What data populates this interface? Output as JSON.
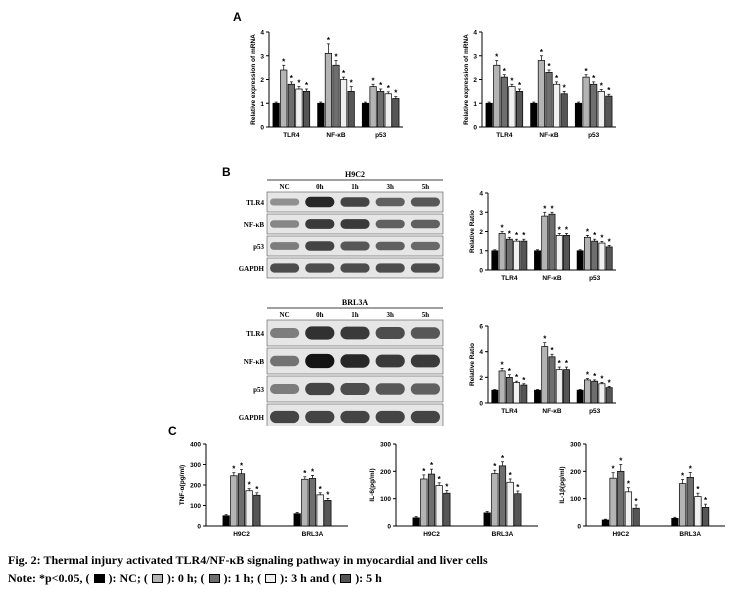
{
  "figure": {
    "panel_a_label": "A",
    "panel_b_label": "B",
    "panel_c_label": "C",
    "caption_title": "Fig. 2: Thermal injury activated TLR4/NF-κB signaling pathway in myocardial and liver cells",
    "note_prefix": "Note:  *p<0.05, (",
    "note_nc": "): NC; (",
    "note_0h": "): 0 h; (",
    "note_1h": "): 1 h; (",
    "note_3h": "): 3 h and (",
    "note_5h": "): 5 h"
  },
  "colors": {
    "NC": "#000000",
    "0h": "#b4b4b4",
    "1h": "#6e6e6e",
    "3h": "#f0f0f0",
    "5h": "#555555"
  },
  "blots": [
    {
      "title": "H9C2",
      "lanes": [
        "NC",
        "0h",
        "1h",
        "3h",
        "5h"
      ],
      "rows": [
        "TLR4",
        "NF-κB",
        "p53",
        "GAPDH"
      ]
    },
    {
      "title": "BRL3A",
      "lanes": [
        "NC",
        "0h",
        "1h",
        "3h",
        "5h"
      ],
      "rows": [
        "TLR4",
        "NF-κB",
        "p53",
        "GAPDH"
      ]
    }
  ],
  "chart_data": [
    {
      "id": "A-left",
      "type": "bar",
      "ylabel": "Relative expression of mRNA",
      "xlabel": "",
      "ylim": [
        0,
        4
      ],
      "yticks": [
        "0",
        "1",
        "2",
        "3",
        "4"
      ],
      "categories": [
        "TLR4",
        "NF-κB",
        "p53"
      ],
      "series": [
        {
          "key": "NC",
          "values": [
            1.0,
            1.0,
            1.0
          ],
          "errors": [
            0.05,
            0.05,
            0.05
          ],
          "sig": [
            "",
            "",
            ""
          ]
        },
        {
          "key": "0h",
          "values": [
            2.4,
            3.1,
            1.7
          ],
          "errors": [
            0.2,
            0.4,
            0.1
          ],
          "sig": [
            "*",
            "*",
            "*"
          ]
        },
        {
          "key": "1h",
          "values": [
            1.8,
            2.6,
            1.5
          ],
          "errors": [
            0.1,
            0.2,
            0.1
          ],
          "sig": [
            "*",
            "*",
            "*"
          ]
        },
        {
          "key": "3h",
          "values": [
            1.6,
            2.0,
            1.4
          ],
          "errors": [
            0.1,
            0.1,
            0.08
          ],
          "sig": [
            "*",
            "*",
            "*"
          ]
        },
        {
          "key": "5h",
          "values": [
            1.5,
            1.5,
            1.2
          ],
          "errors": [
            0.1,
            0.2,
            0.08
          ],
          "sig": [
            "*",
            "*",
            "*"
          ]
        }
      ]
    },
    {
      "id": "A-right",
      "type": "bar",
      "ylabel": "Relative expression of mRNA",
      "xlabel": "",
      "ylim": [
        0,
        4
      ],
      "yticks": [
        "0",
        "1",
        "2",
        "3",
        "4"
      ],
      "categories": [
        "TLR4",
        "NF-κB",
        "p53"
      ],
      "series": [
        {
          "key": "NC",
          "values": [
            1.0,
            1.0,
            1.0
          ],
          "errors": [
            0.05,
            0.05,
            0.05
          ],
          "sig": [
            "",
            "",
            ""
          ]
        },
        {
          "key": "0h",
          "values": [
            2.6,
            2.8,
            2.1
          ],
          "errors": [
            0.2,
            0.2,
            0.1
          ],
          "sig": [
            "*",
            "*",
            "*"
          ]
        },
        {
          "key": "1h",
          "values": [
            2.1,
            2.3,
            1.8
          ],
          "errors": [
            0.1,
            0.1,
            0.1
          ],
          "sig": [
            "*",
            "*",
            "*"
          ]
        },
        {
          "key": "3h",
          "values": [
            1.7,
            1.8,
            1.5
          ],
          "errors": [
            0.1,
            0.1,
            0.08
          ],
          "sig": [
            "*",
            "*",
            "*"
          ]
        },
        {
          "key": "5h",
          "values": [
            1.5,
            1.4,
            1.3
          ],
          "errors": [
            0.1,
            0.1,
            0.08
          ],
          "sig": [
            "*",
            "*",
            "*"
          ]
        }
      ]
    },
    {
      "id": "B-top",
      "type": "bar",
      "ylabel": "Relative Ratio",
      "xlabel": "",
      "ylim": [
        0,
        4
      ],
      "yticks": [
        "0",
        "1",
        "2",
        "3",
        "4"
      ],
      "categories": [
        "TLR4",
        "NF-κB",
        "p53"
      ],
      "series": [
        {
          "key": "NC",
          "values": [
            1.0,
            1.0,
            1.0
          ],
          "errors": [
            0.05,
            0.05,
            0.05
          ],
          "sig": [
            "",
            "",
            ""
          ]
        },
        {
          "key": "0h",
          "values": [
            1.9,
            2.8,
            1.7
          ],
          "errors": [
            0.1,
            0.2,
            0.1
          ],
          "sig": [
            "*",
            "*",
            "*"
          ]
        },
        {
          "key": "1h",
          "values": [
            1.6,
            2.9,
            1.5
          ],
          "errors": [
            0.1,
            0.1,
            0.1
          ],
          "sig": [
            "*",
            "*",
            "*"
          ]
        },
        {
          "key": "3h",
          "values": [
            1.5,
            1.8,
            1.4
          ],
          "errors": [
            0.1,
            0.1,
            0.08
          ],
          "sig": [
            "*",
            "*",
            "*"
          ]
        },
        {
          "key": "5h",
          "values": [
            1.5,
            1.8,
            1.2
          ],
          "errors": [
            0.1,
            0.1,
            0.08
          ],
          "sig": [
            "*",
            "*",
            "*"
          ]
        }
      ]
    },
    {
      "id": "B-bottom",
      "type": "bar",
      "ylabel": "Relative Ratio",
      "xlabel": "",
      "ylim": [
        0,
        6
      ],
      "yticks": [
        "0",
        "2",
        "4",
        "6"
      ],
      "categories": [
        "TLR4",
        "NF-κB",
        "p53"
      ],
      "series": [
        {
          "key": "NC",
          "values": [
            1.0,
            1.0,
            1.0
          ],
          "errors": [
            0.05,
            0.05,
            0.05
          ],
          "sig": [
            "",
            "",
            ""
          ]
        },
        {
          "key": "0h",
          "values": [
            2.5,
            4.4,
            1.8
          ],
          "errors": [
            0.2,
            0.3,
            0.1
          ],
          "sig": [
            "*",
            "*",
            "*"
          ]
        },
        {
          "key": "1h",
          "values": [
            2.0,
            3.6,
            1.7
          ],
          "errors": [
            0.2,
            0.2,
            0.1
          ],
          "sig": [
            "*",
            "*",
            "*"
          ]
        },
        {
          "key": "3h",
          "values": [
            1.6,
            2.6,
            1.5
          ],
          "errors": [
            0.1,
            0.2,
            0.1
          ],
          "sig": [
            "*",
            "*",
            "*"
          ]
        },
        {
          "key": "5h",
          "values": [
            1.4,
            2.6,
            1.2
          ],
          "errors": [
            0.1,
            0.2,
            0.1
          ],
          "sig": [
            "*",
            "*",
            "*"
          ]
        }
      ]
    },
    {
      "id": "C-tnf",
      "type": "bar",
      "ylabel": "TNF-α(pg/ml)",
      "xlabel": "",
      "ylim": [
        0,
        400
      ],
      "yticks": [
        "0",
        "100",
        "200",
        "300",
        "400"
      ],
      "categories": [
        "H9C2",
        "BRL3A"
      ],
      "series": [
        {
          "key": "NC",
          "values": [
            50,
            60
          ],
          "errors": [
            5,
            6
          ],
          "sig": [
            "",
            ""
          ]
        },
        {
          "key": "0h",
          "values": [
            245,
            228
          ],
          "errors": [
            15,
            12
          ],
          "sig": [
            "*",
            "*"
          ]
        },
        {
          "key": "1h",
          "values": [
            255,
            232
          ],
          "errors": [
            20,
            15
          ],
          "sig": [
            "*",
            "*"
          ]
        },
        {
          "key": "3h",
          "values": [
            172,
            152
          ],
          "errors": [
            10,
            10
          ],
          "sig": [
            "*",
            "*"
          ]
        },
        {
          "key": "5h",
          "values": [
            150,
            125
          ],
          "errors": [
            12,
            10
          ],
          "sig": [
            "*",
            "*"
          ]
        }
      ]
    },
    {
      "id": "C-il6",
      "type": "bar",
      "ylabel": "IL-6(pg/ml)",
      "xlabel": "",
      "ylim": [
        0,
        300
      ],
      "yticks": [
        "0",
        "100",
        "200",
        "300"
      ],
      "categories": [
        "H9C2",
        "BRL3A"
      ],
      "series": [
        {
          "key": "NC",
          "values": [
            30,
            48
          ],
          "errors": [
            4,
            5
          ],
          "sig": [
            "",
            ""
          ]
        },
        {
          "key": "0h",
          "values": [
            172,
            192
          ],
          "errors": [
            15,
            12
          ],
          "sig": [
            "*",
            "*"
          ]
        },
        {
          "key": "1h",
          "values": [
            190,
            220
          ],
          "errors": [
            18,
            15
          ],
          "sig": [
            "*",
            "*"
          ]
        },
        {
          "key": "3h",
          "values": [
            148,
            160
          ],
          "errors": [
            10,
            12
          ],
          "sig": [
            "*",
            "*"
          ]
        },
        {
          "key": "5h",
          "values": [
            120,
            118
          ],
          "errors": [
            10,
            10
          ],
          "sig": [
            "*",
            "*"
          ]
        }
      ]
    },
    {
      "id": "C-il1b",
      "type": "bar",
      "ylabel": "IL-1β(pg/ml)",
      "xlabel": "",
      "ylim": [
        0,
        300
      ],
      "yticks": [
        "0",
        "100",
        "200",
        "300"
      ],
      "categories": [
        "H9C2",
        "BRL3A"
      ],
      "series": [
        {
          "key": "NC",
          "values": [
            22,
            28
          ],
          "errors": [
            3,
            4
          ],
          "sig": [
            "",
            ""
          ]
        },
        {
          "key": "0h",
          "values": [
            175,
            155
          ],
          "errors": [
            20,
            15
          ],
          "sig": [
            "*",
            "*"
          ]
        },
        {
          "key": "1h",
          "values": [
            200,
            178
          ],
          "errors": [
            25,
            18
          ],
          "sig": [
            "*",
            "*"
          ]
        },
        {
          "key": "3h",
          "values": [
            125,
            108
          ],
          "errors": [
            15,
            12
          ],
          "sig": [
            "*",
            "*"
          ]
        },
        {
          "key": "5h",
          "values": [
            65,
            68
          ],
          "errors": [
            12,
            12
          ],
          "sig": [
            "*",
            "*"
          ]
        }
      ]
    }
  ]
}
